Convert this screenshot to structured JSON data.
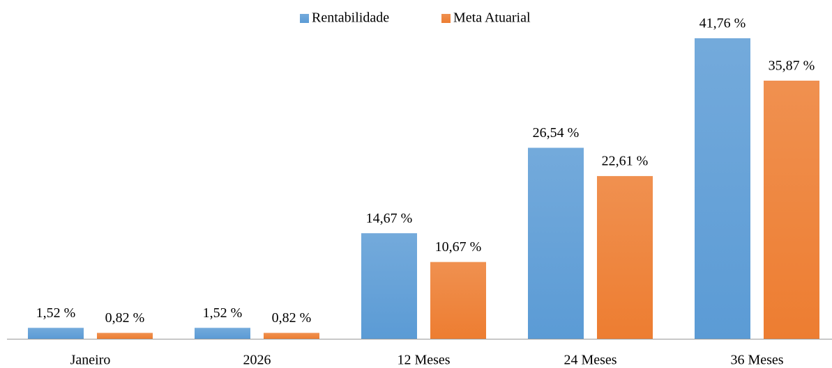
{
  "chart_data": {
    "type": "bar",
    "categories": [
      "Janeiro",
      "2026",
      "12 Meses",
      "24 Meses",
      "36 Meses"
    ],
    "series": [
      {
        "name": "Rentabilidade",
        "color": "#5b9bd5",
        "values": [
          1.52,
          1.52,
          14.67,
          26.54,
          41.76
        ],
        "value_labels": [
          "1,52 %",
          "1,52 %",
          "14,67 %",
          "26,54 %",
          "41,76 %"
        ]
      },
      {
        "name": "Meta Atuarial",
        "color": "#ed7d31",
        "values": [
          0.82,
          0.82,
          10.67,
          22.61,
          35.87
        ],
        "value_labels": [
          "0,82 %",
          "0,82 %",
          "10,67 %",
          "22,61 %",
          "35,87 %"
        ]
      }
    ],
    "legend": "top"
  }
}
